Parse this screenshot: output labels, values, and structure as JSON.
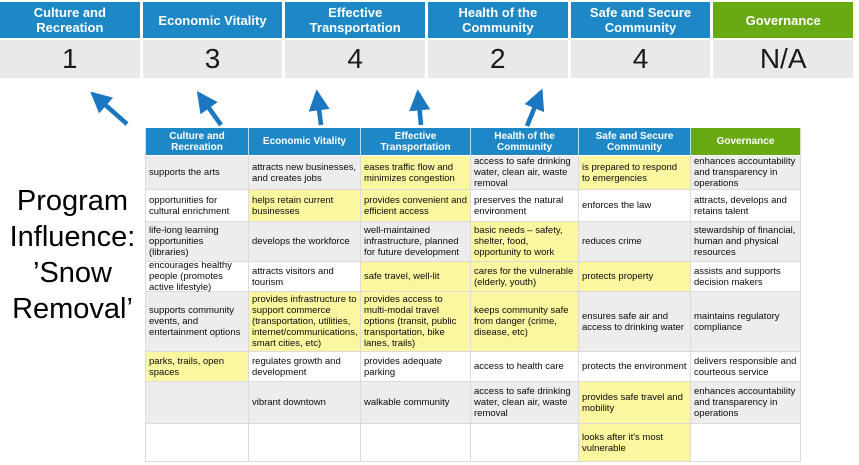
{
  "title": {
    "lines": [
      "Program",
      "Influence:",
      "’Snow",
      "Removal’"
    ]
  },
  "colors": {
    "header_blue": "#1E88C7",
    "header_green": "#69A914",
    "score_bg": "#E9E9E9",
    "stripe_gray": "#EDEDED",
    "highlight_yellow": "#FAF7A0",
    "arrow_blue": "#1B78C0",
    "border": "#DCDCDC"
  },
  "scoreboard": {
    "categories": [
      {
        "label": "Culture and Recreation",
        "score": "1",
        "color": "blue"
      },
      {
        "label": "Economic Vitality",
        "score": "3",
        "color": "blue"
      },
      {
        "label": "Effective Transportation",
        "score": "4",
        "color": "blue"
      },
      {
        "label": "Health of the Community",
        "score": "2",
        "color": "blue"
      },
      {
        "label": "Safe and Secure Community",
        "score": "4",
        "color": "blue"
      },
      {
        "label": "Governance",
        "score": "N/A",
        "color": "green"
      }
    ]
  },
  "arrows": [
    {
      "name": "arrow-culture-and-recreation"
    },
    {
      "name": "arrow-economic-vitality"
    },
    {
      "name": "arrow-effective-transportation"
    },
    {
      "name": "arrow-health-of-the-community"
    },
    {
      "name": "arrow-safe-and-secure-community"
    }
  ],
  "matrix": {
    "headers": [
      {
        "label": "Culture and Recreation",
        "color": "blue"
      },
      {
        "label": "Economic Vitality",
        "color": "blue"
      },
      {
        "label": "Effective Transportation",
        "color": "blue"
      },
      {
        "label": "Health of the Community",
        "color": "blue"
      },
      {
        "label": "Safe and Secure Community",
        "color": "blue"
      },
      {
        "label": "Governance",
        "color": "green"
      }
    ],
    "rows": [
      [
        {
          "text": "supports the arts",
          "highlight": false
        },
        {
          "text": "attracts new businesses, and creates jobs",
          "highlight": false
        },
        {
          "text": "eases traffic flow and minimizes congestion",
          "highlight": true
        },
        {
          "text": "access to safe drinking water, clean air, waste removal",
          "highlight": false
        },
        {
          "text": "is prepared to respond to emergencies",
          "highlight": true
        },
        {
          "text": "enhances accountability and transparency in operations",
          "highlight": false
        }
      ],
      [
        {
          "text": "opportunities for cultural enrichment",
          "highlight": false
        },
        {
          "text": "helps retain current businesses",
          "highlight": true
        },
        {
          "text": "provides convenient and efficient access",
          "highlight": true
        },
        {
          "text": "preserves the natural environment",
          "highlight": false
        },
        {
          "text": "enforces the law",
          "highlight": false
        },
        {
          "text": "attracts, develops and retains talent",
          "highlight": false
        }
      ],
      [
        {
          "text": "life-long learning opportunities (libraries)",
          "highlight": false
        },
        {
          "text": "develops the workforce",
          "highlight": false
        },
        {
          "text": "well-maintained infrastructure, planned for future development",
          "highlight": false
        },
        {
          "text": "basic needs – safety, shelter, food, opportunity to work",
          "highlight": true
        },
        {
          "text": "reduces crime",
          "highlight": false
        },
        {
          "text": "stewardship of financial, human and physical resources",
          "highlight": false
        }
      ],
      [
        {
          "text": "encourages healthy people (promotes active lifestyle)",
          "highlight": false
        },
        {
          "text": "attracts visitors and tourism",
          "highlight": false
        },
        {
          "text": "safe travel, well-lit",
          "highlight": true
        },
        {
          "text": "cares for the vulnerable (elderly, youth)",
          "highlight": true
        },
        {
          "text": "protects property",
          "highlight": true
        },
        {
          "text": "assists and supports decision makers",
          "highlight": false
        }
      ],
      [
        {
          "text": "supports community events, and entertainment options",
          "highlight": false
        },
        {
          "text": "provides infrastructure to support commerce (transportation, utilities, internet/communications, smart cities, etc)",
          "highlight": true
        },
        {
          "text": "provides access to multi-modal travel options (transit, public transportation, bike lanes, trails)",
          "highlight": true
        },
        {
          "text": "keeps community safe from danger (crime, disease, etc)",
          "highlight": true
        },
        {
          "text": "ensures safe air and access to drinking water",
          "highlight": false
        },
        {
          "text": "maintains regulatory compliance",
          "highlight": false
        }
      ],
      [
        {
          "text": "parks, trails, open spaces",
          "highlight": true
        },
        {
          "text": "regulates growth and development",
          "highlight": false
        },
        {
          "text": "provides adequate parking",
          "highlight": false
        },
        {
          "text": "access to health care",
          "highlight": false
        },
        {
          "text": "protects the environment",
          "highlight": false
        },
        {
          "text": "delivers responsible and courteous service",
          "highlight": false
        }
      ],
      [
        {
          "text": "",
          "highlight": false
        },
        {
          "text": "vibrant downtown",
          "highlight": false
        },
        {
          "text": "walkable community",
          "highlight": false
        },
        {
          "text": "access to safe drinking water, clean air, waste removal",
          "highlight": false
        },
        {
          "text": "provides safe travel and mobility",
          "highlight": true
        },
        {
          "text": "enhances accountability and transparency in operations",
          "highlight": false
        }
      ],
      [
        {
          "text": "",
          "highlight": false
        },
        {
          "text": "",
          "highlight": false
        },
        {
          "text": "",
          "highlight": false
        },
        {
          "text": "",
          "highlight": false
        },
        {
          "text": "looks after it's most vulnerable",
          "highlight": true
        },
        {
          "text": "",
          "highlight": false
        }
      ]
    ]
  }
}
